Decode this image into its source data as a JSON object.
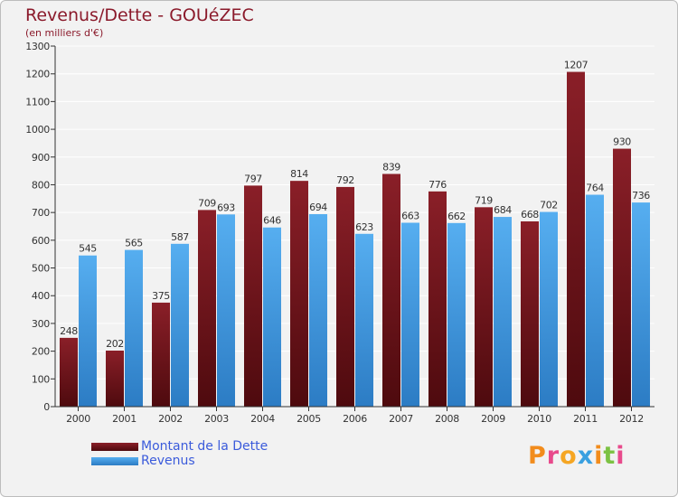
{
  "title": "Revenus/Dette - GOUéZEC",
  "subtitle": "(en milliers d'€)",
  "colors": {
    "dette": "#7a1218",
    "revenus": "#4a9fe0",
    "title": "#8b1a2b",
    "legend_text": "#3b5bdb"
  },
  "legend": {
    "dette_label": "Montant de la Dette",
    "revenus_label": "Revenus"
  },
  "logo": {
    "text": "Proxiti"
  },
  "chart_data": {
    "type": "bar",
    "title": "Revenus/Dette - GOUéZEC",
    "ylabel": "(en milliers d'€)",
    "xlabel": "",
    "ylim": [
      0,
      1300
    ],
    "yticks": [
      "0",
      "100",
      "200",
      "300",
      "400",
      "500",
      "600",
      "700",
      "800",
      "900",
      "1000",
      "1100",
      "1200",
      "1300"
    ],
    "categories": [
      "2000",
      "2001",
      "2002",
      "2003",
      "2004",
      "2005",
      "2006",
      "2007",
      "2008",
      "2009",
      "2010",
      "2011",
      "2012"
    ],
    "series": [
      {
        "name": "Montant de la Dette",
        "values": [
          248,
          202,
          375,
          709,
          797,
          814,
          792,
          839,
          776,
          719,
          668,
          1207,
          930
        ]
      },
      {
        "name": "Revenus",
        "values": [
          545,
          565,
          587,
          693,
          646,
          694,
          623,
          663,
          662,
          684,
          702,
          764,
          736
        ]
      }
    ],
    "grid": true,
    "legend_position": "bottom-left"
  }
}
